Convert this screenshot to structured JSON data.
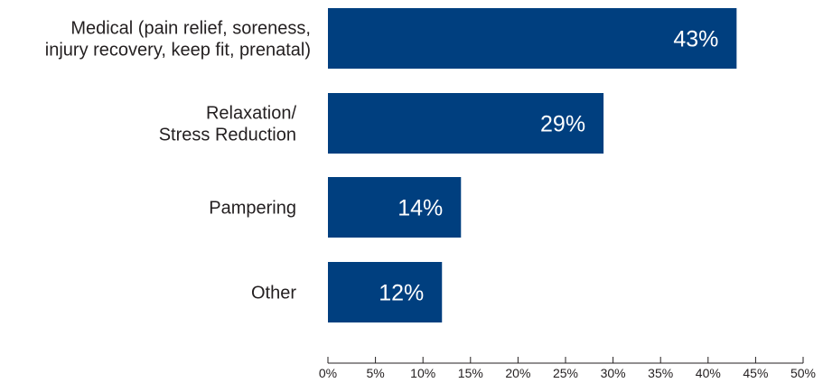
{
  "chart_data": {
    "type": "bar",
    "orientation": "horizontal",
    "categories": [
      [
        "Medical (pain relief, soreness,",
        "injury recovery, keep fit, prenatal)"
      ],
      [
        "Relaxation/",
        "Stress Reduction"
      ],
      [
        "Pampering"
      ],
      [
        "Other"
      ]
    ],
    "values": [
      43,
      29,
      14,
      12
    ],
    "data_labels": [
      "43%",
      "29%",
      "14%",
      "12%"
    ],
    "x_ticks": [
      "0%",
      "5%",
      "10%",
      "15%",
      "20%",
      "25%",
      "30%",
      "35%",
      "40%",
      "45%",
      "50%"
    ],
    "xlim": [
      0,
      50
    ],
    "grid": false,
    "legend": "none",
    "colors": {
      "bar": "#003f7f",
      "bar_label": "#ffffff",
      "text": "#231f20",
      "axis": "#231f20"
    }
  }
}
